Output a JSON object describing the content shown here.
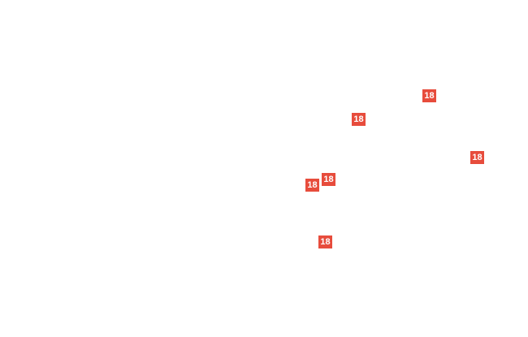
{
  "colors": {
    "page_background": "#ffffff",
    "badge_background": "#e74c3c",
    "badge_text": "#ffffff"
  },
  "callouts": {
    "items": [
      {
        "label": "18"
      },
      {
        "label": "18"
      },
      {
        "label": "18"
      },
      {
        "label": "18"
      },
      {
        "label": "18"
      },
      {
        "label": "18"
      }
    ]
  }
}
